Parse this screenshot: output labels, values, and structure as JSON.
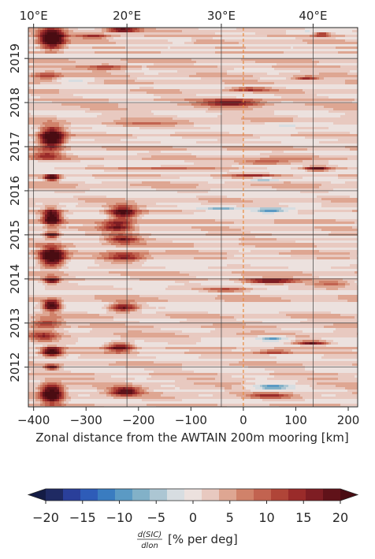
{
  "chart_data": {
    "type": "heatmap",
    "title": "",
    "xlabel": "Zonal distance from the AWTAIN 200m mooring [km]",
    "xlim": [
      -410,
      218
    ],
    "x_ticks": [
      -400,
      -300,
      -200,
      -100,
      0,
      100,
      200
    ],
    "x_tick_labels": [
      "−400",
      "−300",
      "−200",
      "−100",
      "0",
      "100",
      "200"
    ],
    "top_axis_ticks_km": [
      -400,
      -222,
      -42,
      133
    ],
    "top_axis_labels": [
      "10°E",
      "20°E",
      "30°E",
      "40°E"
    ],
    "ylim": [
      2011.1,
      2019.7
    ],
    "y_ticks": [
      2012,
      2013,
      2014,
      2015,
      2016,
      2017,
      2018,
      2019
    ],
    "y_tick_labels": [
      "2012",
      "2013",
      "2014",
      "2015",
      "2016",
      "2017",
      "2018",
      "2019"
    ],
    "grid": true,
    "reference_line_x": 0,
    "reference_line_color": "#e8893a",
    "colorbar": {
      "label_numerator": "d(SIC)",
      "label_denominator": "dlon",
      "label_units": "[% per deg]",
      "ticks": [
        -20,
        -15,
        -10,
        -5,
        0,
        5,
        10,
        15,
        20
      ],
      "tick_labels": [
        "−20",
        "−15",
        "−10",
        "−5",
        "0",
        "5",
        "10",
        "15",
        "20"
      ],
      "levels": [
        -20,
        -18,
        -16,
        -14,
        -12,
        -10,
        -8,
        -6,
        -4,
        -2,
        0,
        2,
        4,
        6,
        8,
        10,
        12,
        14,
        16,
        18,
        20
      ],
      "colors": [
        "#1f2a63",
        "#2a3f9a",
        "#2e5cb8",
        "#3a7cc0",
        "#5b9ac4",
        "#82b1c8",
        "#acc6d3",
        "#d7dde1",
        "#ece1de",
        "#e8c9c0",
        "#dea692",
        "#d0826a",
        "#c26350",
        "#b04538",
        "#9a2b2a",
        "#7e1d23",
        "#601219"
      ],
      "under_color": "#141c45",
      "over_color": "#4a0c12"
    },
    "features": [
      {
        "x": -365,
        "y": 2019.45,
        "dx": 22,
        "dy": 0.22,
        "v": 26
      },
      {
        "x": -365,
        "y": 2017.2,
        "dx": 22,
        "dy": 0.22,
        "v": 26
      },
      {
        "x": -365,
        "y": 2016.3,
        "dx": 14,
        "dy": 0.07,
        "v": 22
      },
      {
        "x": -365,
        "y": 2015.4,
        "dx": 16,
        "dy": 0.18,
        "v": 22
      },
      {
        "x": -365,
        "y": 2015.0,
        "dx": 13,
        "dy": 0.06,
        "v": 20
      },
      {
        "x": -365,
        "y": 2014.5,
        "dx": 22,
        "dy": 0.2,
        "v": 26
      },
      {
        "x": -365,
        "y": 2013.97,
        "dx": 14,
        "dy": 0.07,
        "v": 18
      },
      {
        "x": -365,
        "y": 2013.4,
        "dx": 16,
        "dy": 0.12,
        "v": 22
      },
      {
        "x": -365,
        "y": 2012.35,
        "dx": 18,
        "dy": 0.1,
        "v": 22
      },
      {
        "x": -365,
        "y": 2012.0,
        "dx": 12,
        "dy": 0.05,
        "v": 18
      },
      {
        "x": -365,
        "y": 2011.4,
        "dx": 20,
        "dy": 0.2,
        "v": 24
      },
      {
        "x": -375,
        "y": 2018.6,
        "dx": 28,
        "dy": 0.1,
        "v": 9
      },
      {
        "x": -375,
        "y": 2016.8,
        "dx": 28,
        "dy": 0.1,
        "v": 9
      },
      {
        "x": -375,
        "y": 2013.0,
        "dx": 28,
        "dy": 0.12,
        "v": 10
      },
      {
        "x": -380,
        "y": 2012.7,
        "dx": 25,
        "dy": 0.12,
        "v": 9
      },
      {
        "x": -230,
        "y": 2019.65,
        "dx": 30,
        "dy": 0.06,
        "v": 16
      },
      {
        "x": -230,
        "y": 2015.5,
        "dx": 25,
        "dy": 0.15,
        "v": 18
      },
      {
        "x": -240,
        "y": 2015.2,
        "dx": 30,
        "dy": 0.12,
        "v": 14
      },
      {
        "x": -230,
        "y": 2014.9,
        "dx": 30,
        "dy": 0.1,
        "v": 12
      },
      {
        "x": -225,
        "y": 2014.5,
        "dx": 40,
        "dy": 0.12,
        "v": 12
      },
      {
        "x": -230,
        "y": 2013.35,
        "dx": 28,
        "dy": 0.1,
        "v": 16
      },
      {
        "x": -235,
        "y": 2012.45,
        "dx": 25,
        "dy": 0.1,
        "v": 16
      },
      {
        "x": -225,
        "y": 2011.45,
        "dx": 28,
        "dy": 0.1,
        "v": 16
      },
      {
        "x": -285,
        "y": 2019.5,
        "dx": 30,
        "dy": 0.06,
        "v": 9
      },
      {
        "x": -150,
        "y": 2016.5,
        "dx": 90,
        "dy": 0.06,
        "v": 7
      },
      {
        "x": -200,
        "y": 2017.5,
        "dx": 70,
        "dy": 0.06,
        "v": 6
      },
      {
        "x": -260,
        "y": 2018.8,
        "dx": 40,
        "dy": 0.08,
        "v": 8
      },
      {
        "x": -20,
        "y": 2018.0,
        "dx": 55,
        "dy": 0.08,
        "v": 14
      },
      {
        "x": 10,
        "y": 2018.3,
        "dx": 40,
        "dy": 0.05,
        "v": 10
      },
      {
        "x": 50,
        "y": 2013.95,
        "dx": 50,
        "dy": 0.06,
        "v": 16
      },
      {
        "x": -30,
        "y": 2013.75,
        "dx": 45,
        "dy": 0.05,
        "v": 8
      },
      {
        "x": 40,
        "y": 2016.65,
        "dx": 60,
        "dy": 0.06,
        "v": 10
      },
      {
        "x": 20,
        "y": 2016.35,
        "dx": 45,
        "dy": 0.05,
        "v": 8
      },
      {
        "x": 50,
        "y": 2015.55,
        "dx": 40,
        "dy": 0.06,
        "v": -17
      },
      {
        "x": -40,
        "y": 2015.6,
        "dx": 35,
        "dy": 0.05,
        "v": -10
      },
      {
        "x": 40,
        "y": 2016.25,
        "dx": 25,
        "dy": 0.05,
        "v": -9
      },
      {
        "x": 140,
        "y": 2016.5,
        "dx": 25,
        "dy": 0.05,
        "v": 16
      },
      {
        "x": 120,
        "y": 2018.55,
        "dx": 25,
        "dy": 0.04,
        "v": 12
      },
      {
        "x": 150,
        "y": 2019.55,
        "dx": 15,
        "dy": 0.05,
        "v": 12
      },
      {
        "x": 130,
        "y": 2012.55,
        "dx": 30,
        "dy": 0.04,
        "v": 15
      },
      {
        "x": 55,
        "y": 2012.65,
        "dx": 30,
        "dy": 0.06,
        "v": -14
      },
      {
        "x": 55,
        "y": 2011.55,
        "dx": 40,
        "dy": 0.06,
        "v": -16
      },
      {
        "x": 50,
        "y": 2011.35,
        "dx": 40,
        "dy": 0.05,
        "v": 10
      },
      {
        "x": 60,
        "y": 2012.35,
        "dx": 35,
        "dy": 0.05,
        "v": 10
      },
      {
        "x": 170,
        "y": 2013.9,
        "dx": 40,
        "dy": 0.06,
        "v": 8
      },
      {
        "x": -320,
        "y": 2018.5,
        "dx": 30,
        "dy": 0.06,
        "v": -6
      },
      {
        "x": -120,
        "y": 2019.4,
        "dx": 20,
        "dy": 0.05,
        "v": -6
      },
      {
        "x": 120,
        "y": 2019.6,
        "dx": 40,
        "dy": 0.05,
        "v": -7
      },
      {
        "x": 90,
        "y": 2017.5,
        "dx": 60,
        "dy": 0.06,
        "v": -5
      }
    ]
  }
}
